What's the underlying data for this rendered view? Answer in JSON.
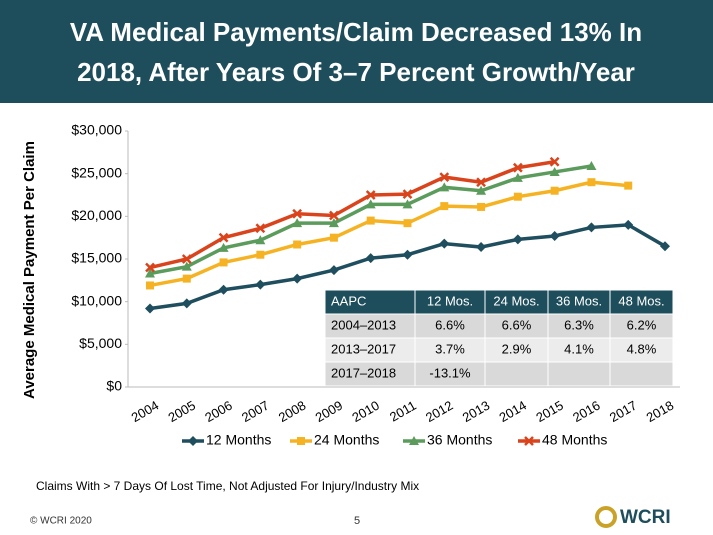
{
  "chart_data": {
    "type": "line",
    "title": [
      "VA Medical Payments/Claim Decreased 13% In",
      "2018, After Years Of 3–7 Percent Growth/Year"
    ],
    "y_label": "Average Medical Payment Per Claim",
    "categories": [
      "2004",
      "2005",
      "2006",
      "2007",
      "2008",
      "2009",
      "2010",
      "2011",
      "2012",
      "2013",
      "2014",
      "2015",
      "2016",
      "2017",
      "2018"
    ],
    "ylim": [
      0,
      30000
    ],
    "yticks": [
      {
        "value": 0,
        "label": "$0"
      },
      {
        "value": 5000,
        "label": "$5,000"
      },
      {
        "value": 10000,
        "label": "$10,000"
      },
      {
        "value": 15000,
        "label": "$15,000"
      },
      {
        "value": 20000,
        "label": "$20,000"
      },
      {
        "value": 25000,
        "label": "$25,000"
      },
      {
        "value": 30000,
        "label": "$30,000"
      }
    ],
    "grid": false,
    "legend": "bottom",
    "series": [
      {
        "name": "12 Months",
        "color": "#1f4e5f",
        "marker": "diamond",
        "values": [
          9200,
          9800,
          11400,
          12000,
          12700,
          13700,
          15100,
          15500,
          16800,
          16400,
          17300,
          17700,
          18700,
          19000,
          16500
        ]
      },
      {
        "name": "24 Months",
        "color": "#f5b324",
        "marker": "square",
        "values": [
          11900,
          12700,
          14600,
          15500,
          16700,
          17500,
          19500,
          19200,
          21200,
          21100,
          22300,
          23000,
          24000,
          23600,
          null
        ]
      },
      {
        "name": "36 Months",
        "color": "#5b9b5b",
        "marker": "triangle",
        "values": [
          13300,
          14100,
          16300,
          17200,
          19200,
          19200,
          21400,
          21400,
          23400,
          23000,
          24500,
          25200,
          25900,
          null,
          null
        ]
      },
      {
        "name": "48 Months",
        "color": "#d9441c",
        "marker": "x",
        "values": [
          14000,
          15000,
          17500,
          18600,
          20300,
          20100,
          22500,
          22600,
          24600,
          24000,
          25700,
          26400,
          null,
          null,
          null
        ]
      }
    ]
  },
  "table": {
    "header": [
      "AAPC",
      "12 Mos.",
      "24 Mos.",
      "36 Mos.",
      "48 Mos."
    ],
    "rows": [
      [
        "2004–2013",
        "6.6%",
        "6.6%",
        "6.3%",
        "6.2%"
      ],
      [
        "2013–2017",
        "3.7%",
        "2.9%",
        "4.1%",
        "4.8%"
      ],
      [
        "2017–2018",
        "-13.1%"
      ]
    ]
  },
  "footnote": "Claims With > 7 Days Of Lost Time, Not Adjusted For Injury/Industry Mix",
  "footer": {
    "copyright": "© WCRI 2020",
    "page": "5",
    "logo": "WCRI"
  }
}
